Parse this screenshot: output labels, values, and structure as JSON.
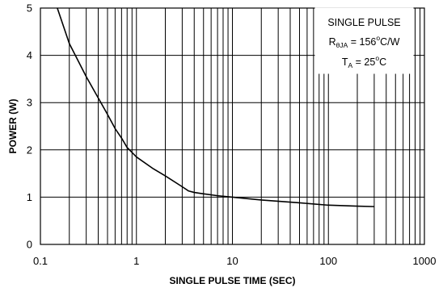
{
  "chart_data": {
    "type": "line",
    "title": "",
    "xlabel": "SINGLE PULSE TIME (SEC)",
    "ylabel": "POWER (W)",
    "xscale": "log",
    "xlim": [
      0.1,
      1000
    ],
    "ylim": [
      0,
      5
    ],
    "x_ticks": [
      "0.1",
      "1",
      "10",
      "100",
      "1000"
    ],
    "y_ticks": [
      "0",
      "1",
      "2",
      "3",
      "4",
      "5"
    ],
    "grid": true,
    "legend": {
      "placement": "top-right",
      "line1": "SINGLE PULSE",
      "line2": {
        "prefix": "R",
        "sub": "θJA",
        "value": " = 156",
        "sup": "o",
        "unit": "C/W"
      },
      "line3": {
        "prefix": "T",
        "sub": "A",
        "value": " = 25",
        "sup": "o",
        "unit": "C"
      }
    },
    "series": [
      {
        "color": "#000000",
        "x": [
          0.15,
          0.2,
          0.3,
          0.4,
          0.5,
          0.6,
          0.7,
          0.8,
          1,
          1.5,
          2,
          3,
          3.5,
          4,
          5,
          7,
          10,
          20,
          50,
          100,
          200,
          300
        ],
        "y": [
          5.0,
          4.25,
          3.55,
          3.1,
          2.75,
          2.45,
          2.25,
          2.05,
          1.85,
          1.6,
          1.45,
          1.22,
          1.13,
          1.1,
          1.07,
          1.03,
          1.0,
          0.94,
          0.88,
          0.83,
          0.81,
          0.8
        ]
      }
    ]
  }
}
